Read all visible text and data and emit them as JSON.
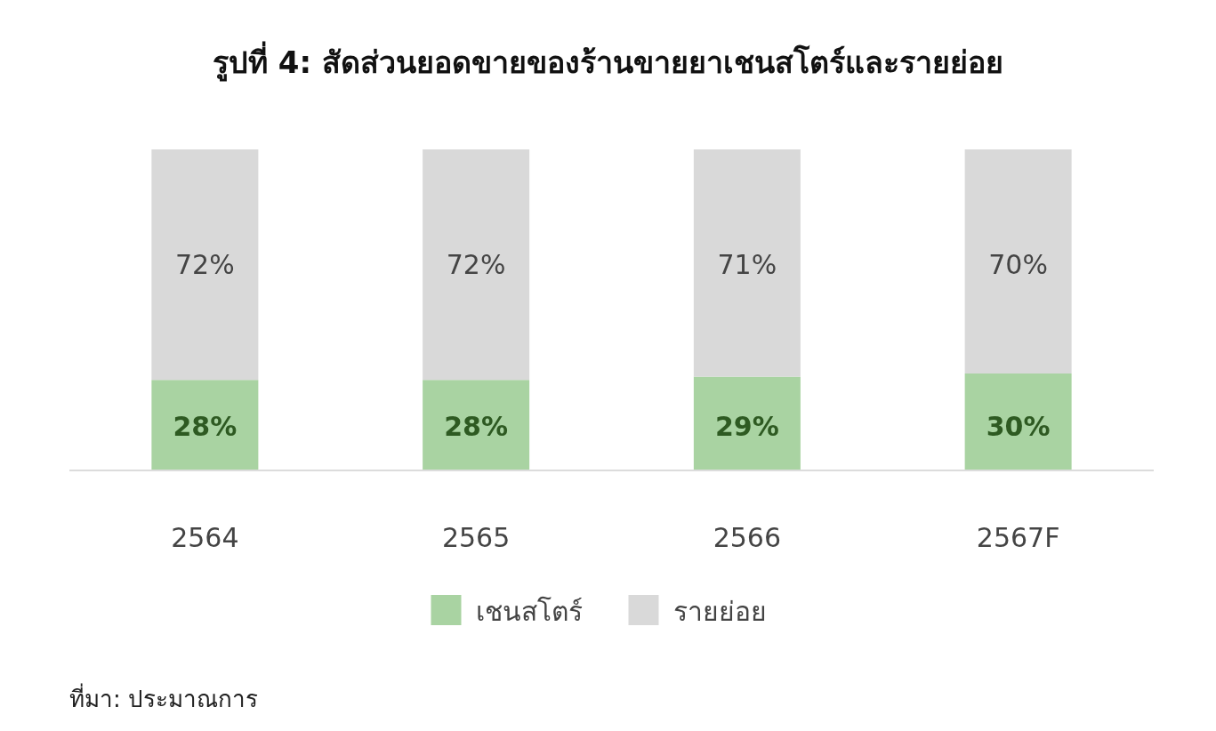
{
  "chart_data": {
    "type": "bar",
    "title": "รูปที่ 4: สัดส่วนยอดขายของร้านขายยาเชนสโตร์และรายย่อย",
    "categories": [
      "2564",
      "2565",
      "2566",
      "2567F"
    ],
    "stacked": true,
    "ylim": [
      0,
      100
    ],
    "tick_labels": "x",
    "legend": "bottom",
    "series": [
      {
        "name": "เชนสโตร์",
        "color": "#a9d3a2",
        "values": [
          28,
          28,
          29,
          30
        ],
        "value_labels": [
          "28%",
          "28%",
          "29%",
          "30%"
        ]
      },
      {
        "name": "รายย่อย",
        "color": "#d9d9d9",
        "values": [
          72,
          72,
          71,
          70
        ],
        "value_labels": [
          "72%",
          "72%",
          "71%",
          "70%"
        ]
      }
    ],
    "annotations": [
      "ที่มา: ประมาณการ"
    ]
  }
}
